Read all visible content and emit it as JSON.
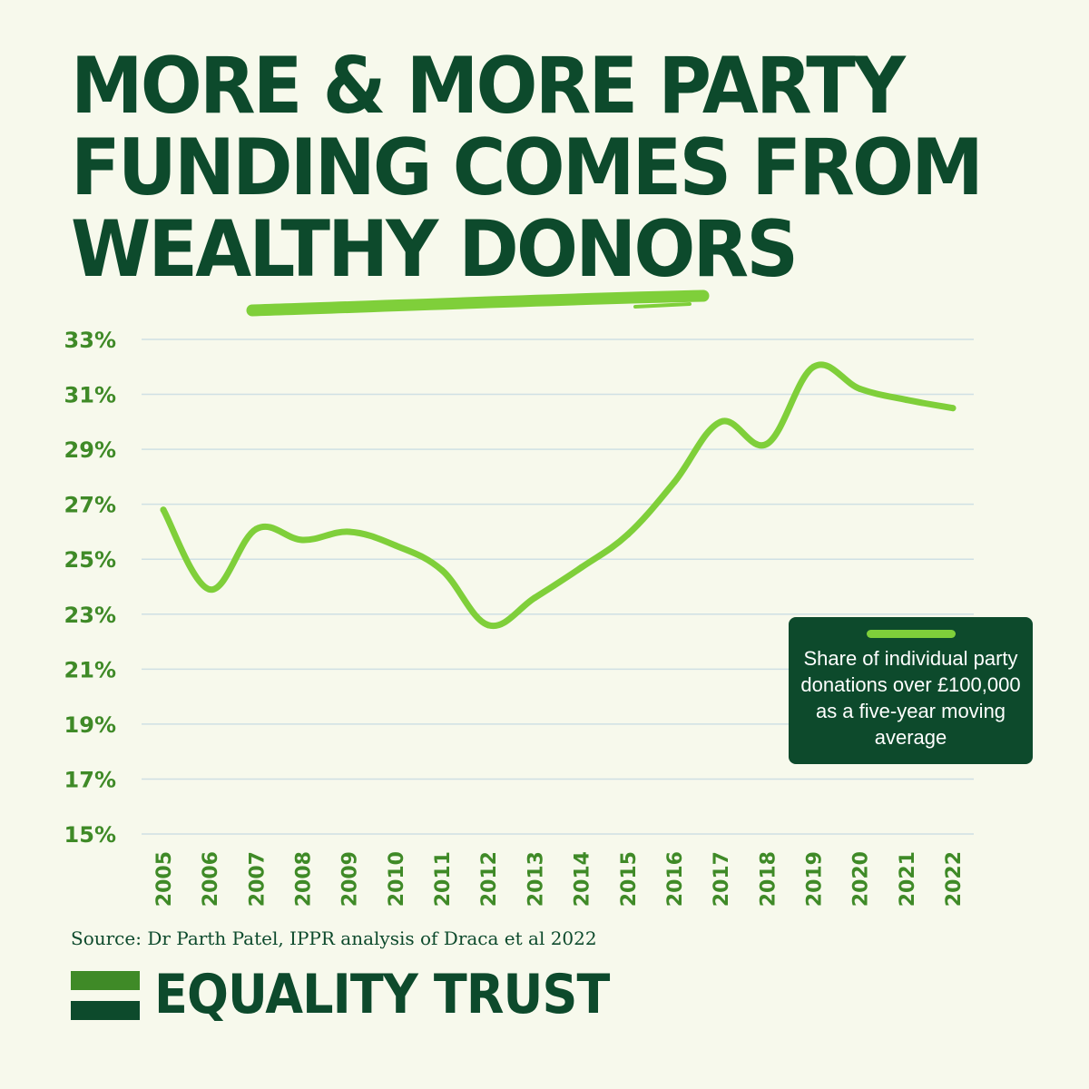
{
  "title_lines": [
    "MORE & MORE PARTY",
    "FUNDING COMES FROM",
    "WEALTHY DONORS"
  ],
  "source": "Source: Dr Parth Patel, IPPR analysis of Draca et al 2022",
  "brand": "EQUALITY TRUST",
  "colors": {
    "background": "#f7f9ec",
    "dark_green": "#0d4a2c",
    "mid_green": "#3f8a27",
    "line_green": "#7fcf3a",
    "grid": "#cfe0e4"
  },
  "chart_data": {
    "type": "line",
    "title": "",
    "xlabel": "",
    "ylabel": "",
    "x": [
      "2005",
      "2006",
      "2007",
      "2008",
      "2009",
      "2010",
      "2011",
      "2012",
      "2013",
      "2014",
      "2015",
      "2016",
      "2017",
      "2018",
      "2019",
      "2020",
      "2021",
      "2022"
    ],
    "yticks": [
      "33%",
      "31%",
      "29%",
      "27%",
      "25%",
      "23%",
      "21%",
      "19%",
      "17%",
      "15%"
    ],
    "ylim": [
      15,
      33
    ],
    "grid": true,
    "legend_position": "right",
    "series": [
      {
        "name": "Share of individual party donations over £100,000 as a five-year moving average",
        "values": [
          26.8,
          23.9,
          26.1,
          25.7,
          26.0,
          25.5,
          24.6,
          22.6,
          23.6,
          24.7,
          25.9,
          27.8,
          30.0,
          29.2,
          32.0,
          31.2,
          30.8,
          30.5
        ]
      }
    ]
  }
}
